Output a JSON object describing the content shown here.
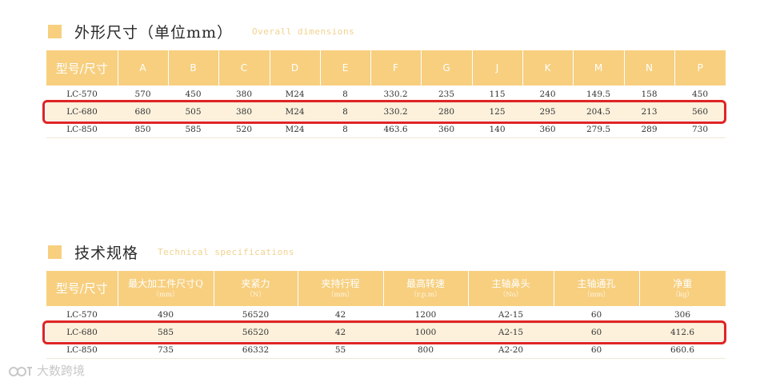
{
  "section1": {
    "title_cn": "外形尺寸（单位mm）",
    "title_en": "Overall dimensions",
    "headers": [
      "型号/尺寸",
      "A",
      "B",
      "C",
      "D",
      "E",
      "F",
      "G",
      "J",
      "K",
      "M",
      "N",
      "P"
    ],
    "rows": [
      [
        "LC-570",
        "570",
        "450",
        "380",
        "M24",
        "8",
        "330.2",
        "235",
        "115",
        "240",
        "149.5",
        "158",
        "450"
      ],
      [
        "LC-680",
        "680",
        "505",
        "380",
        "M24",
        "8",
        "330.2",
        "280",
        "125",
        "295",
        "204.5",
        "213",
        "560"
      ],
      [
        "LC-850",
        "850",
        "585",
        "520",
        "M24",
        "8",
        "463.6",
        "360",
        "140",
        "360",
        "279.5",
        "289",
        "730"
      ]
    ]
  },
  "section2": {
    "title_cn": "技术规格",
    "title_en": "Technical specifications",
    "headers": [
      {
        "label": "型号/尺寸",
        "unit": ""
      },
      {
        "label": "最大加工件尺寸Q",
        "unit": "（mm）"
      },
      {
        "label": "夹紧力",
        "unit": "（N）"
      },
      {
        "label": "夹持行程",
        "unit": "（mm）"
      },
      {
        "label": "最高转速",
        "unit": "（r.p.m）"
      },
      {
        "label": "主轴鼻头",
        "unit": "（No）"
      },
      {
        "label": "主轴通孔",
        "unit": "（mm）"
      },
      {
        "label": "净重",
        "unit": "（kg）"
      }
    ],
    "rows": [
      [
        "LC-570",
        "490",
        "56520",
        "42",
        "1200",
        "A2-15",
        "60",
        "306"
      ],
      [
        "LC-680",
        "585",
        "56520",
        "42",
        "1000",
        "A2-15",
        "60",
        "412.6"
      ],
      [
        "LC-850",
        "735",
        "66332",
        "55",
        "800",
        "A2-20",
        "60",
        "660.6"
      ]
    ]
  },
  "watermark": {
    "text": "大数跨境"
  },
  "colors": {
    "accent": "#f7cf7f",
    "row_highlight": "#fdf1dc",
    "callout": "#e02424"
  }
}
